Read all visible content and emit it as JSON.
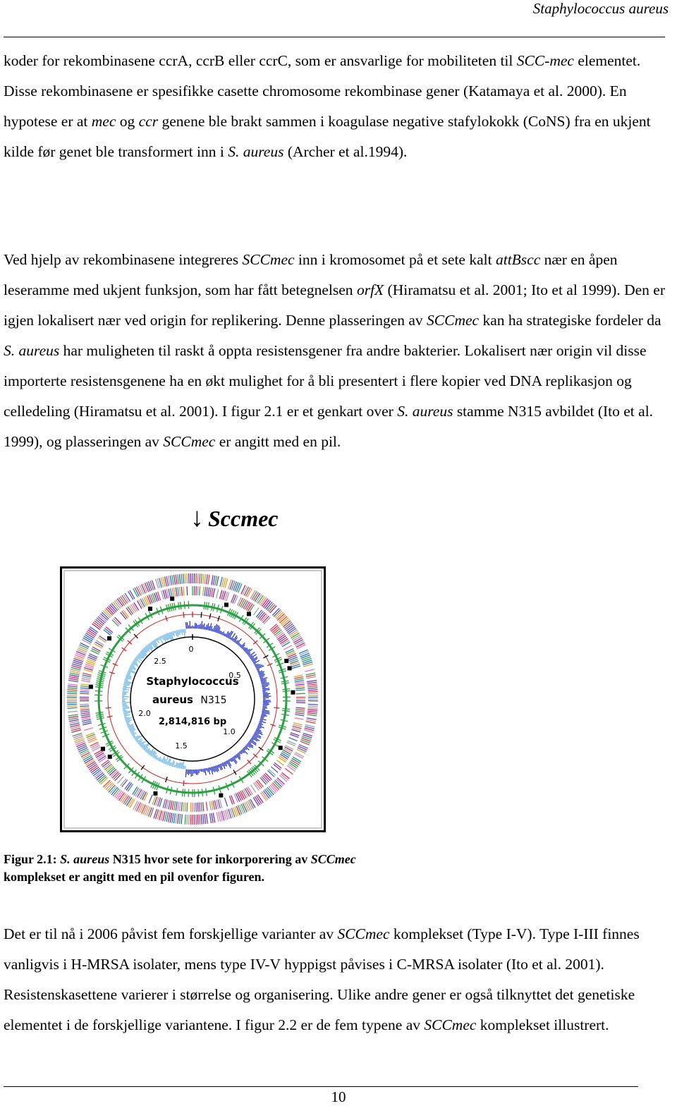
{
  "header": {
    "running_title": "Staphylococcus aureus"
  },
  "paragraphs": [
    {
      "runs": [
        "koder for rekombinasene ccrA, ccrB eller ccrC, som er ansvarlige for mobiliteten til ",
        {
          "text": "SCC-mec",
          "italic": true
        },
        " elementet. Disse rekombinasene er spesifikke casette chromosome rekombinase gener (Katamaya et al. 2000). En hypotese er at ",
        {
          "text": "mec",
          "italic": true
        },
        " og ",
        {
          "text": "ccr",
          "italic": true
        },
        " genene ble brakt sammen i koagulase negative stafylokokk (CoNS) fra en ukjent kilde før genet ble transformert inn i ",
        {
          "text": "S. aureus",
          "italic": true
        },
        " (Archer et al.1994)."
      ]
    },
    {
      "runs": [
        "Ved hjelp av rekombinasene integreres ",
        {
          "text": "SCCmec",
          "italic": true
        },
        " inn i kromosomet på et sete kalt ",
        {
          "text": "attBscc",
          "italic": true
        },
        " nær en åpen leseramme med ukjent funksjon, som har fått betegnelsen ",
        {
          "text": "orfX",
          "italic": true
        },
        " (Hiramatsu et al. 2001; Ito et al 1999). Den er igjen lokalisert nær ved origin for replikering. Denne plasseringen av ",
        {
          "text": "SCCmec",
          "italic": true
        },
        " kan ha strategiske fordeler da ",
        {
          "text": "S. aureus",
          "italic": true
        },
        " har muligheten til raskt å oppta resistensgener fra andre bakterier. Lokalisert nær origin vil disse importerte resistensgenene ha en økt mulighet for å bli presentert i flere kopier ved DNA replikasjon og celledeling (Hiramatsu et al. 2001). I figur 2.1 er et genkart over ",
        {
          "text": "S. aureus",
          "italic": true
        },
        " stamme N315 avbildet (Ito et al. 1999), og plasseringen av ",
        {
          "text": "SCCmec",
          "italic": true
        },
        " er angitt med en pil."
      ]
    },
    {
      "runs": [
        "Det er til nå i 2006 påvist fem forskjellige varianter av ",
        {
          "text": "SCCmec",
          "italic": true
        },
        " komplekset (Type I-V). Type I-III finnes vanligvis i H-MRSA isolater, mens type IV-V hyppigst påvises i C-MRSA isolater (Ito et al. 2001). Resistenskasettene varierer i størrelse og organisering. Ulike andre gener er også tilknyttet det genetiske elementet i de forskjellige variantene. I figur 2.2 er de fem typene av ",
        {
          "text": "SCCmec",
          "italic": true
        },
        " komplekset illustrert."
      ]
    }
  ],
  "figure": {
    "marker": {
      "arrow": "↓",
      "label": "Sccmec"
    },
    "map": {
      "name_line1": "Staphylococcus",
      "name_line2": "aureus",
      "strain": "N315",
      "size": "2,814,816 bp",
      "scale_labels": [
        "0",
        "0.5",
        "1.0",
        "1.5",
        "2.0",
        "2.5"
      ]
    },
    "caption": {
      "runs": [
        "Figur 2.1: ",
        {
          "text": "S. aureus",
          "italic": true
        },
        " N315 hvor sete for inkorporering av ",
        {
          "text": "SCCmec",
          "italic": true
        },
        " komplekset er angitt med en pil ovenfor figuren."
      ]
    }
  },
  "footer": {
    "page_number": "10"
  }
}
